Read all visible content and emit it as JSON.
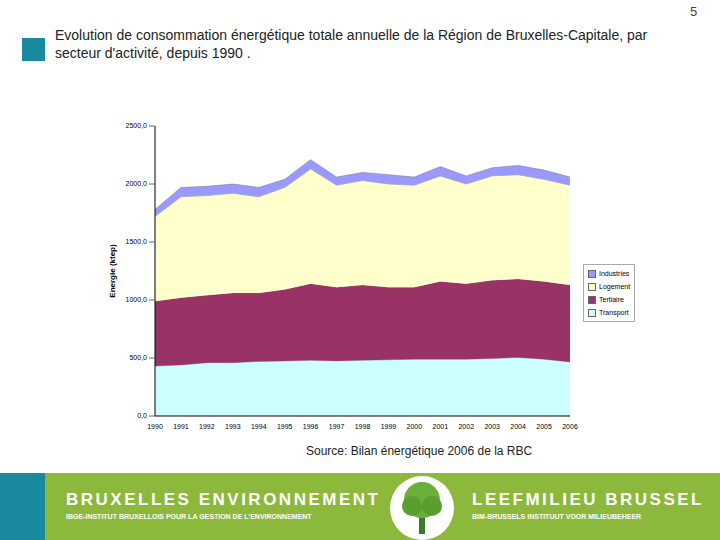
{
  "page": {
    "number": "5",
    "source": "Source: Bilan énergétique 2006 de la RBC",
    "footer": {
      "left_title": "BRUXELLES ENVIRONNEMENT",
      "left_subtitle": "IBGE-INSTITUT BRUXELLOIS POUR LA GESTION DE L'ENVIRONNEMENT",
      "right_title": "LEEFMILIEU BRUSSEL",
      "right_subtitle": "BIM-BRUSSELS INSTITUUT VOOR MILIEUBEHEER"
    }
  },
  "chart_data": {
    "type": "area",
    "stacked": true,
    "legend": "right",
    "title": "Evolution de consommation énergétique totale annuelle de la Région de Bruxelles-Capitale, par secteur d'activité, depuis 1990 .",
    "y_label": "Energie (ktep)",
    "categories": [
      "1990",
      "1991",
      "1992",
      "1993",
      "1994",
      "1995",
      "1996",
      "1997",
      "1998",
      "1999",
      "2000",
      "2001",
      "2002",
      "2003",
      "2004",
      "2005",
      "2006"
    ],
    "ylim": [
      0,
      2500
    ],
    "yticks": [
      {
        "value": 0,
        "label": "0,0"
      },
      {
        "value": 500,
        "label": "500,0"
      },
      {
        "value": 1000,
        "label": "1000,0"
      },
      {
        "value": 1500,
        "label": "1500,0"
      },
      {
        "value": 2000,
        "label": "2000,0"
      },
      {
        "value": 2500,
        "label": "2500,0"
      }
    ],
    "series": [
      {
        "name": "Industries",
        "color": "#9999ff",
        "values": [
          60,
          80,
          80,
          80,
          80,
          70,
          80,
          70,
          70,
          80,
          70,
          80,
          70,
          70,
          80,
          80,
          70
        ]
      },
      {
        "name": "Logement",
        "color": "#ffffcc",
        "values": [
          730,
          870,
          860,
          860,
          830,
          880,
          990,
          880,
          900,
          890,
          880,
          910,
          860,
          900,
          900,
          880,
          860
        ]
      },
      {
        "name": "Tertiaire",
        "color": "#993366",
        "values": [
          560,
          580,
          580,
          600,
          590,
          615,
          660,
          635,
          650,
          625,
          620,
          670,
          650,
          675,
          675,
          670,
          665
        ]
      },
      {
        "name": "Transport",
        "color": "#ccffff",
        "values": [
          430,
          440,
          460,
          460,
          470,
          475,
          480,
          475,
          480,
          485,
          490,
          490,
          490,
          495,
          505,
          490,
          465
        ]
      }
    ]
  }
}
